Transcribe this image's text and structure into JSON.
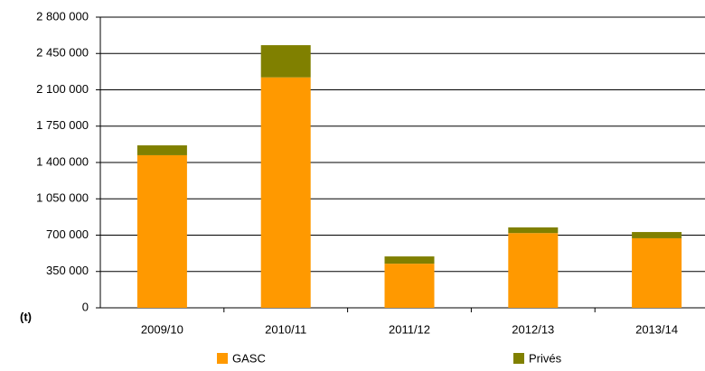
{
  "chart_data": {
    "type": "bar",
    "stacked": true,
    "y_axis_label": "(t)",
    "categories": [
      "2009/10",
      "2010/11",
      "2011/12",
      "2012/13",
      "2013/14"
    ],
    "series": [
      {
        "name": "GASC",
        "color": "#ff9900",
        "values": [
          1470000,
          2220000,
          425000,
          720000,
          670000
        ]
      },
      {
        "name": "Privés",
        "color": "#808000",
        "values": [
          95000,
          310000,
          70000,
          55000,
          60000
        ]
      }
    ],
    "ylim": [
      0,
      2800000
    ],
    "yticks": [
      0,
      {
        "value": 350000,
        "label": "350 000"
      },
      {
        "value": 700000,
        "label": "700 000"
      },
      {
        "value": 1050000,
        "label": "1 050 000"
      },
      {
        "value": 1400000,
        "label": "1 400 000"
      },
      {
        "value": 1750000,
        "label": "1 750 000"
      },
      {
        "value": 2100000,
        "label": "2 100 000"
      },
      {
        "value": 2450000,
        "label": "2 450 000"
      },
      {
        "value": 2800000,
        "label": "2 800 000"
      }
    ],
    "grid": true,
    "legend": "bottom"
  }
}
